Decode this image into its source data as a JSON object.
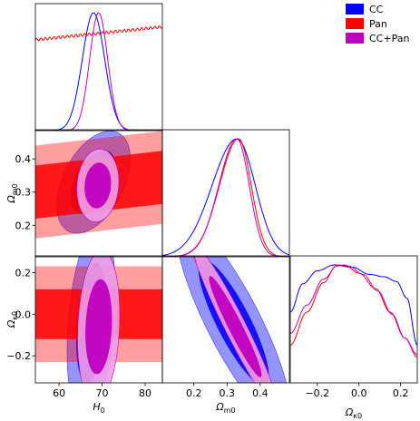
{
  "chart_data": {
    "type": "corner",
    "parameters": [
      {
        "key": "H0",
        "symbol": "H",
        "sub": "0",
        "range": [
          54.5,
          84
        ],
        "ticks": [
          60,
          70,
          80
        ],
        "tick_labels": [
          "60",
          "70",
          "80"
        ]
      },
      {
        "key": "Om",
        "symbol": "Ω",
        "sub": "m0",
        "range": [
          0.105,
          0.488
        ],
        "ticks": [
          0.2,
          0.3,
          0.4
        ],
        "tick_labels": [
          "0.2",
          "0.3",
          "0.4"
        ]
      },
      {
        "key": "Ok",
        "symbol": "Ω",
        "sub": "κ0",
        "range": [
          -0.33,
          0.28
        ],
        "ticks": [
          -0.2,
          0.0,
          0.2
        ],
        "tick_labels": [
          "−0.2",
          "0.0",
          "0.2"
        ]
      }
    ],
    "series": [
      {
        "name": "CC",
        "color": "#0000ff"
      },
      {
        "name": "Pan",
        "color": "#ff0000"
      },
      {
        "name": "CC+Pan",
        "color": "#c000c0"
      }
    ],
    "marginals": {
      "H0": {
        "CC": {
          "mean": 68.0,
          "sd": 2.6
        },
        "Pan": {
          "flat": true,
          "start": 0.77,
          "end": 0.88
        },
        "CC+Pan": {
          "mean": 69.2,
          "sd": 2.1
        }
      },
      "Om": {
        "CC": {
          "mean": 0.33,
          "sd_left": 0.075,
          "sd_right": 0.055
        },
        "Pan": {
          "mean": 0.335,
          "sd_left": 0.058,
          "sd_right": 0.038
        },
        "CC+Pan": {
          "mean": 0.33,
          "sd_left": 0.055,
          "sd_right": 0.037
        }
      },
      "Ok": {
        "CC": {
          "points": [
            [
              -0.33,
              0.6
            ],
            [
              -0.27,
              0.84
            ],
            [
              -0.2,
              0.95
            ],
            [
              -0.12,
              1.0
            ],
            [
              -0.03,
              0.98
            ],
            [
              0.05,
              0.92
            ],
            [
              0.12,
              0.9
            ],
            [
              0.18,
              0.86
            ],
            [
              0.23,
              0.72
            ],
            [
              0.28,
              0.32
            ]
          ]
        },
        "Pan": {
          "points": [
            [
              -0.33,
              0.32
            ],
            [
              -0.25,
              0.6
            ],
            [
              -0.17,
              0.85
            ],
            [
              -0.11,
              0.99
            ],
            [
              -0.07,
              1.0
            ],
            [
              0.0,
              0.93
            ],
            [
              0.08,
              0.8
            ],
            [
              0.15,
              0.6
            ],
            [
              0.22,
              0.38
            ],
            [
              0.28,
              0.22
            ]
          ]
        },
        "CC+Pan": {
          "points": [
            [
              -0.33,
              0.42
            ],
            [
              -0.25,
              0.66
            ],
            [
              -0.17,
              0.88
            ],
            [
              -0.1,
              1.0
            ],
            [
              -0.05,
              0.99
            ],
            [
              0.02,
              0.92
            ],
            [
              0.09,
              0.78
            ],
            [
              0.16,
              0.58
            ],
            [
              0.22,
              0.38
            ],
            [
              0.28,
              0.24
            ]
          ]
        }
      }
    },
    "contours": {
      "Om_vs_H0": {
        "CC": {
          "x": 68.0,
          "y": 0.33,
          "sx": 3.5,
          "sy": 0.063,
          "rho": 0.45
        },
        "Pan": {
          "band": true,
          "center": 0.3,
          "c68": 0.08,
          "c95": 0.14,
          "slope": 0.0015
        },
        "CC+Pan": {
          "x": 69.0,
          "y": 0.32,
          "sx": 2.0,
          "sy": 0.045,
          "rho": 0.1
        }
      },
      "Ok_vs_H0": {
        "CC": {
          "x": 67.5,
          "y": -0.04,
          "sx": 2.3,
          "sy": 0.19,
          "rho": 0.3
        },
        "Pan": {
          "band": true,
          "center": 0.0,
          "c68": 0.12,
          "c95": 0.23,
          "slope": 0.0
        },
        "CC+Pan": {
          "x": 69.2,
          "y": -0.06,
          "sx": 2.0,
          "sy": 0.15,
          "rho": 0.15
        }
      },
      "Ok_vs_Om": {
        "CC": {
          "x": 0.32,
          "y": -0.04,
          "sx": 0.07,
          "sy": 0.2,
          "rho": -0.85
        },
        "Pan": {
          "x": 0.325,
          "y": -0.06,
          "sx": 0.055,
          "sy": 0.17,
          "rho": -0.97
        },
        "CC+Pan": {
          "x": 0.325,
          "y": -0.06,
          "sx": 0.052,
          "sy": 0.16,
          "rho": -0.96
        }
      }
    },
    "legend_position": "top-right"
  }
}
